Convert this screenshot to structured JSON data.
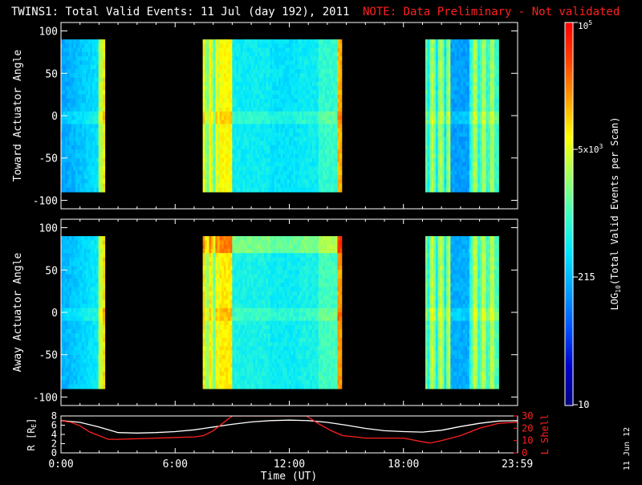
{
  "header": {
    "title": "TWINS1: Total Valid Events: 11 Jul (day 192), 2011",
    "note": "NOTE: Data Preliminary - Not validated",
    "note_color": "#ff2020"
  },
  "stamp": "11 Jun 12",
  "chart_data": [
    {
      "type": "heatmap",
      "ylabel": "Toward Actuator Angle",
      "ylim": [
        -110,
        110
      ],
      "yticks": [
        "100",
        "50",
        "0",
        "-50",
        "-100"
      ],
      "y_values": [
        100,
        50,
        0,
        -50,
        -100
      ],
      "x_range_hours": [
        0,
        24
      ],
      "data_angle_range": [
        -90,
        90
      ],
      "data_intervals_hours": [
        [
          0.0,
          2.3
        ],
        [
          7.45,
          14.75
        ],
        [
          19.15,
          23.0
        ]
      ]
    },
    {
      "type": "heatmap",
      "ylabel": "Away Actuator Angle",
      "ylim": [
        -110,
        110
      ],
      "yticks": [
        "100",
        "50",
        "0",
        "-50",
        "-100"
      ],
      "y_values": [
        100,
        50,
        0,
        -50,
        -100
      ],
      "x_range_hours": [
        0,
        24
      ],
      "data_angle_range": [
        -90,
        90
      ],
      "data_intervals_hours": [
        [
          0.0,
          2.3
        ],
        [
          7.45,
          14.75
        ],
        [
          19.15,
          23.0
        ]
      ]
    },
    {
      "type": "line",
      "xlabel": "Time (UT)",
      "xticks": [
        "0:00",
        "6:00",
        "12:00",
        "18:00",
        "23:59"
      ],
      "x_hours": [
        0,
        6,
        12,
        18,
        23.983
      ],
      "left_axis": {
        "label": "R [R",
        "label_sub": "E",
        "label_end": "]",
        "ticks": [
          "8",
          "6",
          "4",
          "2",
          "0"
        ],
        "ylim": [
          0,
          8
        ]
      },
      "right_axis": {
        "label": "L Shell",
        "ticks": [
          "30",
          "20",
          "10",
          "0"
        ],
        "ylim": [
          0,
          30
        ],
        "color": "#ff2020"
      },
      "series": [
        {
          "axis": "left",
          "color": "#ffffff",
          "x": [
            0,
            1,
            2,
            3,
            4,
            5,
            6,
            7,
            8,
            9,
            10,
            11,
            12,
            13,
            14,
            15,
            16,
            17,
            18,
            19,
            20,
            21,
            22,
            23,
            24
          ],
          "y": [
            7.0,
            6.6,
            5.6,
            4.4,
            4.3,
            4.4,
            4.6,
            5.0,
            5.6,
            6.2,
            6.7,
            7.0,
            7.1,
            7.0,
            6.6,
            6.0,
            5.3,
            4.8,
            4.6,
            4.5,
            4.9,
            5.7,
            6.4,
            6.9,
            7.0
          ]
        },
        {
          "axis": "right",
          "color": "#ff2020",
          "x": [
            0,
            0.5,
            1,
            1.5,
            2,
            2.5,
            3,
            4,
            5,
            6,
            7,
            7.5,
            8,
            8.5,
            9.0,
            12.9,
            13.5,
            14.2,
            14.8,
            15.5,
            16,
            17,
            18,
            19,
            19.4,
            20,
            21,
            22,
            23,
            24
          ],
          "y": [
            26,
            25,
            22,
            17,
            14,
            11,
            11,
            11.5,
            12,
            12.5,
            13,
            14,
            18,
            24,
            30,
            30,
            24,
            18,
            14,
            13,
            12,
            12,
            12,
            9,
            8,
            10,
            14,
            20,
            24,
            25
          ]
        }
      ]
    }
  ],
  "colorbar": {
    "label": "LOG",
    "label_sub": "10",
    "label_rest": "(Total Valid Events per Scan)",
    "top_label": "10",
    "top_label_exp": "5",
    "mid_label": "5x10",
    "mid_label_exp": "3",
    "low_label": "215",
    "bottom_label": "10",
    "range": [
      10,
      100000
    ],
    "colors": [
      "#000080",
      "#0000c8",
      "#0050ff",
      "#00a0ff",
      "#00e6ff",
      "#40ffc0",
      "#a0ff60",
      "#ffff00",
      "#ffa000",
      "#ff4000",
      "#ff0000"
    ]
  }
}
